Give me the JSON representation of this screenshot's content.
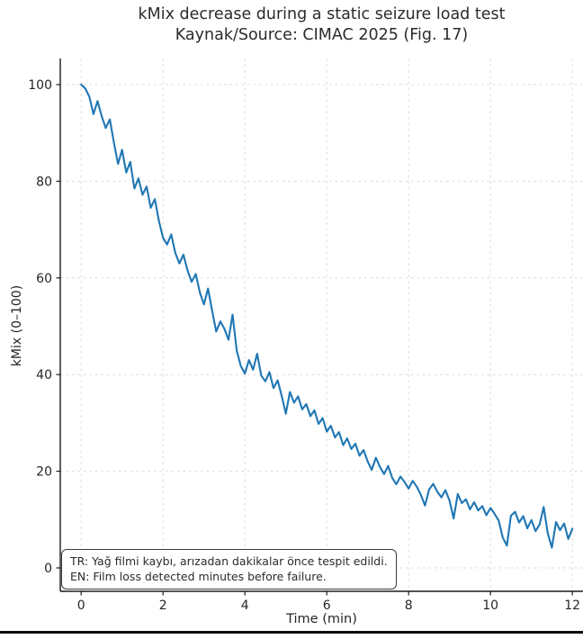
{
  "chart": {
    "title": "kMix decrease during a static seizure load test",
    "subtitle": "Kaynak/Source: CIMAC 2025 (Fig. 17)",
    "xlabel": "Time (min)",
    "ylabel": "kMix (0–100)"
  },
  "annotation": {
    "line1": "TR: Yağ filmi kaybı, arızadan dakikalar önce tespit edildi.",
    "line2": "EN: Film loss detected minutes before failure."
  },
  "chart_data": {
    "type": "line",
    "title": "kMix decrease during a static seizure load test",
    "subtitle": "Kaynak/Source: CIMAC 2025 (Fig. 17)",
    "xlabel": "Time (min)",
    "ylabel": "kMix (0–100)",
    "x_ticks": [
      0,
      2,
      4,
      6,
      8,
      10,
      12
    ],
    "y_ticks": [
      0,
      20,
      40,
      60,
      80,
      100
    ],
    "xlim": [
      -0.51,
      12.26
    ],
    "ylim": [
      -4.84,
      105.4
    ],
    "grid": "dashed",
    "legend": "none",
    "colors": {
      "line": "#1f77b4",
      "grid": "#d9d9d9",
      "spine": "#1a1a1a",
      "text": "#262626"
    },
    "series": [
      {
        "name": "kMix",
        "color": "#1f77b4",
        "x_start": 0,
        "x_step": 0.1,
        "x_end": 12,
        "values": [
          100.0,
          99.2,
          97.5,
          93.9,
          96.6,
          93.5,
          91.0,
          92.8,
          88.0,
          83.6,
          86.5,
          81.8,
          84.0,
          78.5,
          80.6,
          77.2,
          78.9,
          74.5,
          76.3,
          71.8,
          68.3,
          66.9,
          69.0,
          65.2,
          63.0,
          64.8,
          61.5,
          59.2,
          60.8,
          57.0,
          54.5,
          57.8,
          53.2,
          48.9,
          51.0,
          49.5,
          47.2,
          52.4,
          45.0,
          41.8,
          40.2,
          43.0,
          41.0,
          44.3,
          39.8,
          38.6,
          40.5,
          37.2,
          38.8,
          35.6,
          31.9,
          36.4,
          34.2,
          35.5,
          32.8,
          33.9,
          31.4,
          32.6,
          29.8,
          31.0,
          28.2,
          29.4,
          27.0,
          28.1,
          25.4,
          26.8,
          24.6,
          25.7,
          23.2,
          24.4,
          22.0,
          20.3,
          22.8,
          20.9,
          19.4,
          21.1,
          18.6,
          17.3,
          18.9,
          17.8,
          16.4,
          18.0,
          16.8,
          15.1,
          12.9,
          16.2,
          17.4,
          15.8,
          14.6,
          16.1,
          13.9,
          10.2,
          15.3,
          13.4,
          14.2,
          12.1,
          13.6,
          11.9,
          12.8,
          10.9,
          12.4,
          11.2,
          9.8,
          6.3,
          4.6,
          10.8,
          11.6,
          9.4,
          10.7,
          8.2,
          9.9,
          7.6,
          9.0,
          12.6,
          7.1,
          4.2,
          9.5,
          7.8,
          9.2,
          6.0,
          8.1
        ]
      }
    ]
  }
}
